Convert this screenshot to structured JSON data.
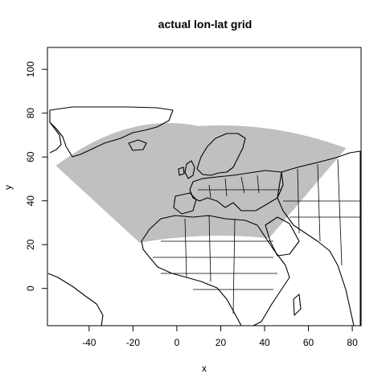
{
  "chart_data": {
    "type": "map",
    "title": "actual lon-lat grid",
    "xlabel": "x",
    "ylabel": "y",
    "xlim": [
      -59,
      84
    ],
    "ylim": [
      -17,
      110
    ],
    "xticks": [
      -40,
      -20,
      0,
      20,
      40,
      60,
      80
    ],
    "yticks": [
      0,
      20,
      40,
      60,
      80,
      100
    ],
    "colors": {
      "grid_fill": "#c0c0c0",
      "coastline": "#000000",
      "frame": "#000000"
    },
    "grid_region": {
      "corners": [
        {
          "x": -55,
          "y": 56
        },
        {
          "x": 10,
          "y": 74
        },
        {
          "x": 77,
          "y": 64
        },
        {
          "x": 42,
          "y": 23
        },
        {
          "x": -17,
          "y": 21
        }
      ]
    }
  }
}
